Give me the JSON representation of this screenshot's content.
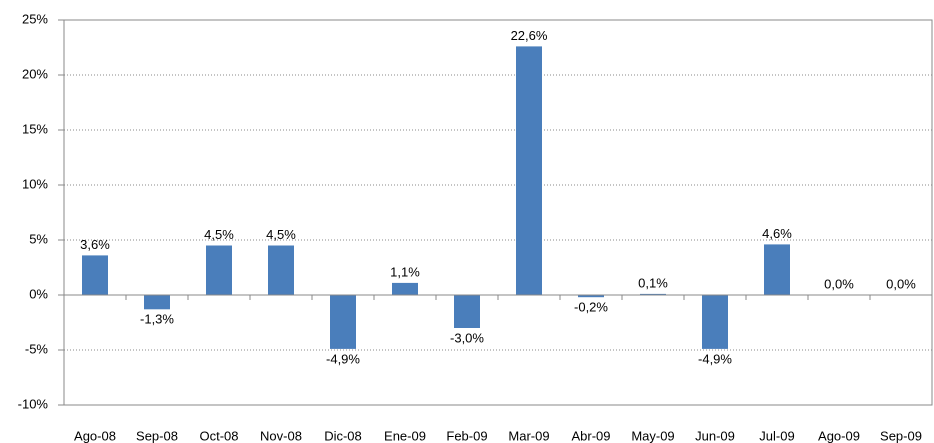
{
  "chart_data": {
    "type": "bar",
    "categories": [
      "Ago-08",
      "Sep-08",
      "Oct-08",
      "Nov-08",
      "Dic-08",
      "Ene-09",
      "Feb-09",
      "Mar-09",
      "Abr-09",
      "May-09",
      "Jun-09",
      "Jul-09",
      "Ago-09",
      "Sep-09"
    ],
    "values": [
      3.6,
      -1.3,
      4.5,
      4.5,
      -4.9,
      1.1,
      -3.0,
      22.6,
      -0.2,
      0.1,
      -4.9,
      4.6,
      0.0,
      0.0
    ],
    "value_labels": [
      "3,6%",
      "-1,3%",
      "4,5%",
      "4,5%",
      "-4,9%",
      "1,1%",
      "-3,0%",
      "22,6%",
      "-0,2%",
      "0,1%",
      "-4,9%",
      "4,6%",
      "0,0%",
      "0,0%"
    ],
    "color": "#4a7ebb",
    "ylim": [
      -10,
      25
    ],
    "yticks": [
      {
        "value": -10,
        "label": "-10%"
      },
      {
        "value": -5,
        "label": "-5%"
      },
      {
        "value": 0,
        "label": "0%"
      },
      {
        "value": 5,
        "label": "5%"
      },
      {
        "value": 10,
        "label": "10%"
      },
      {
        "value": 15,
        "label": "15%"
      },
      {
        "value": 20,
        "label": "20%"
      },
      {
        "value": 25,
        "label": "25%"
      }
    ],
    "grid": true
  }
}
